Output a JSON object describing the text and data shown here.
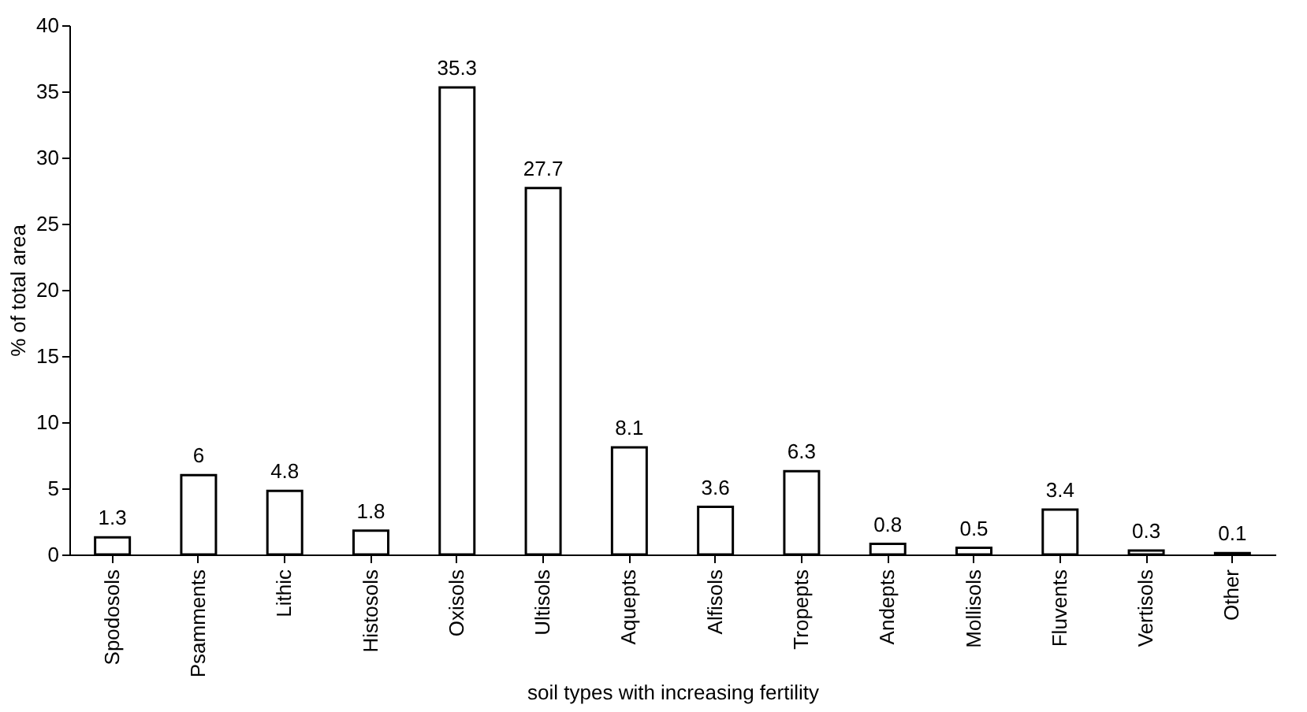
{
  "chart_data": {
    "type": "bar",
    "categories": [
      "Spodosols",
      "Psamments",
      "Lithic",
      "Histosols",
      "Oxisols",
      "Ultisols",
      "Aquepts",
      "Alfisols",
      "Tropepts",
      "Andepts",
      "Mollisols",
      "Fluvents",
      "Vertisols",
      "Other"
    ],
    "values": [
      1.3,
      6,
      4.8,
      1.8,
      35.3,
      27.7,
      8.1,
      3.6,
      6.3,
      0.8,
      0.5,
      3.4,
      0.3,
      0.1
    ],
    "color": "#ffffff",
    "xlabel": "soil types with increasing fertility",
    "ylabel": "% of total area",
    "ylim": [
      0,
      40
    ],
    "yticks": [
      0,
      5,
      10,
      15,
      20,
      25,
      30,
      35,
      40
    ],
    "data_labels": true,
    "grid": false
  }
}
